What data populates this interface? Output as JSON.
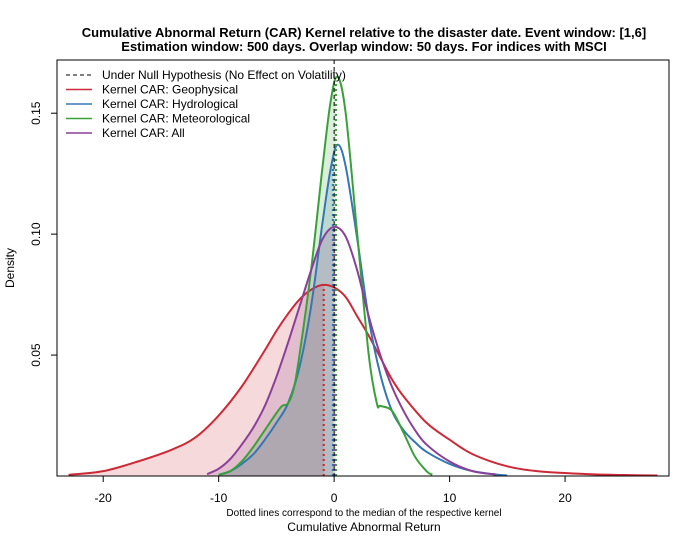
{
  "chart_data": {
    "type": "line",
    "title_line1": "Cumulative Abnormal Return (CAR) Kernel relative to the disaster date. Event window: [1,6]",
    "title_line2": "Estimation window: 500 days. Overlap window: 50 days. For indices with MSCI",
    "xlabel": "Cumulative Abnormal Return",
    "ylabel": "Density",
    "note": "Dotted lines correspond to the median of the respective kernel",
    "xlim": [
      -24,
      29
    ],
    "ylim": [
      0,
      0.172
    ],
    "x_ticks": [
      -20,
      -10,
      0,
      10,
      20
    ],
    "x_tick_labels": [
      "-20",
      "-10",
      "0",
      "10",
      "20"
    ],
    "y_ticks": [
      0.05,
      0.1,
      0.15
    ],
    "y_tick_labels": [
      "0.05",
      "0.10",
      "0.15"
    ],
    "null_line_x": 0,
    "legend_position": "top-left",
    "legend": [
      {
        "label": "Under Null Hypothesis (No Effect on Volatility)",
        "color": "#000000",
        "dashed": true
      },
      {
        "label": "Kernel CAR: Geophysical",
        "color": "#cc2a36",
        "dashed": false
      },
      {
        "label": "Kernel CAR: Hydrological",
        "color": "#3577b3",
        "dashed": false
      },
      {
        "label": "Kernel CAR: Meteorological",
        "color": "#3aa13a",
        "dashed": false
      },
      {
        "label": "Kernel CAR: All",
        "color": "#8a3f98",
        "dashed": false
      }
    ],
    "series": [
      {
        "name": "Kernel CAR: Geophysical",
        "color": "#cc2a36",
        "median": -0.9,
        "points": [
          [
            -23,
            0.0005
          ],
          [
            -20,
            0.002
          ],
          [
            -17,
            0.006
          ],
          [
            -14,
            0.011
          ],
          [
            -12,
            0.016
          ],
          [
            -10,
            0.025
          ],
          [
            -8,
            0.037
          ],
          [
            -6,
            0.052
          ],
          [
            -5,
            0.06
          ],
          [
            -4,
            0.067
          ],
          [
            -3,
            0.073
          ],
          [
            -2,
            0.077
          ],
          [
            -1,
            0.079
          ],
          [
            0,
            0.078
          ],
          [
            1,
            0.074
          ],
          [
            2,
            0.066
          ],
          [
            3,
            0.058
          ],
          [
            4,
            0.049
          ],
          [
            5,
            0.04
          ],
          [
            6,
            0.033
          ],
          [
            8,
            0.022
          ],
          [
            10,
            0.015
          ],
          [
            12,
            0.009
          ],
          [
            15,
            0.004
          ],
          [
            18,
            0.0018
          ],
          [
            22,
            0.0008
          ],
          [
            25,
            0.0004
          ],
          [
            28,
            0.0002
          ]
        ]
      },
      {
        "name": "Kernel CAR: Hydrological",
        "color": "#3577b3",
        "median": -0.1,
        "points": [
          [
            -10,
            0.0005
          ],
          [
            -9,
            0.002
          ],
          [
            -8,
            0.005
          ],
          [
            -7,
            0.009
          ],
          [
            -6,
            0.015
          ],
          [
            -5,
            0.022
          ],
          [
            -4,
            0.03
          ],
          [
            -3,
            0.045
          ],
          [
            -2,
            0.07
          ],
          [
            -1,
            0.105
          ],
          [
            -0.3,
            0.127
          ],
          [
            0.3,
            0.137
          ],
          [
            1,
            0.128
          ],
          [
            2,
            0.098
          ],
          [
            3,
            0.065
          ],
          [
            4,
            0.042
          ],
          [
            5,
            0.027
          ],
          [
            6,
            0.019
          ],
          [
            7,
            0.014
          ],
          [
            8,
            0.01
          ],
          [
            10,
            0.005
          ],
          [
            12,
            0.002
          ],
          [
            14,
            0.0006
          ],
          [
            15,
            0.0002
          ]
        ]
      },
      {
        "name": "Kernel CAR: Meteorological",
        "color": "#3aa13a",
        "median": 0.15,
        "points": [
          [
            -10,
            0.0005
          ],
          [
            -9,
            0.002
          ],
          [
            -8,
            0.006
          ],
          [
            -7,
            0.012
          ],
          [
            -6,
            0.019
          ],
          [
            -5,
            0.026
          ],
          [
            -4.5,
            0.029
          ],
          [
            -4,
            0.03
          ],
          [
            -3.5,
            0.036
          ],
          [
            -3,
            0.05
          ],
          [
            -2,
            0.085
          ],
          [
            -1,
            0.128
          ],
          [
            -0.3,
            0.155
          ],
          [
            0.3,
            0.165
          ],
          [
            1,
            0.15
          ],
          [
            2,
            0.1
          ],
          [
            3,
            0.05
          ],
          [
            3.7,
            0.03
          ],
          [
            4,
            0.029
          ],
          [
            5,
            0.027
          ],
          [
            6,
            0.018
          ],
          [
            7,
            0.008
          ],
          [
            8,
            0.002
          ],
          [
            8.5,
            0.0005
          ]
        ]
      },
      {
        "name": "Kernel CAR: All",
        "color": "#8a3f98",
        "median": 0.0,
        "points": [
          [
            -11,
            0.0008
          ],
          [
            -10,
            0.003
          ],
          [
            -9,
            0.007
          ],
          [
            -8,
            0.013
          ],
          [
            -7,
            0.02
          ],
          [
            -6,
            0.029
          ],
          [
            -5,
            0.041
          ],
          [
            -4,
            0.055
          ],
          [
            -3,
            0.07
          ],
          [
            -2,
            0.085
          ],
          [
            -1,
            0.098
          ],
          [
            0,
            0.103
          ],
          [
            1,
            0.099
          ],
          [
            2,
            0.085
          ],
          [
            3,
            0.066
          ],
          [
            4,
            0.05
          ],
          [
            5,
            0.037
          ],
          [
            6,
            0.027
          ],
          [
            7,
            0.019
          ],
          [
            8,
            0.013
          ],
          [
            10,
            0.006
          ],
          [
            12,
            0.002
          ],
          [
            14,
            0.0006
          ]
        ]
      }
    ]
  }
}
